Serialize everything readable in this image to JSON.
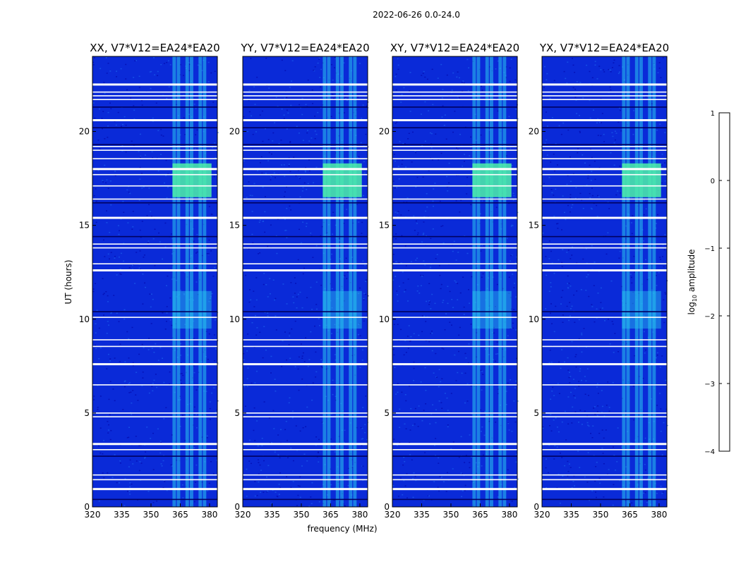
{
  "chart_data": {
    "type": "heatmap",
    "suptitle": "2022-06-26 0.0-24.0",
    "xlabel": "frequency (MHz)",
    "ylabel": "UT (hours)",
    "colorbar_label": "log10 amplitude",
    "colorbar_label_text": "log",
    "colorbar_label_sub": "10",
    "colorbar_label_rest": " amplitude",
    "colorbar_range": [
      -4,
      1
    ],
    "colorbar_ticks": [
      "−4",
      "−3",
      "−2",
      "−1",
      "0",
      "1"
    ],
    "colorbar_tick_values": [
      -4,
      -3,
      -2,
      -1,
      0,
      1
    ],
    "xlim": [
      320,
      384
    ],
    "ylim": [
      0,
      24
    ],
    "xticks": [
      320,
      335,
      350,
      365,
      380
    ],
    "xtick_labels": [
      "320",
      "335",
      "350",
      "365",
      "380"
    ],
    "yticks": [
      0,
      5,
      10,
      15,
      20
    ],
    "ytick_labels": [
      "0",
      "5",
      "10",
      "15",
      "20"
    ],
    "rfi_band_mhz": [
      361,
      381
    ],
    "rfi_band_peak_hours": [
      16.5,
      18.3
    ],
    "flagged_row_hours": [
      0.95,
      1.45,
      1.7,
      3.05,
      3.35,
      4.8,
      5.0,
      6.5,
      7.6,
      8.55,
      8.9,
      10.1,
      12.6,
      12.95,
      13.8,
      14.0,
      15.4,
      16.4,
      17.1,
      17.7,
      18.0,
      18.55,
      19.0,
      19.2,
      20.6,
      21.7,
      21.9,
      22.1,
      22.5
    ],
    "dark_row_hours": [
      0.4,
      2.7,
      10.4,
      14.4,
      16.2,
      19.3,
      20.2,
      21.3
    ],
    "panels": [
      {
        "title": "XX, V7*V12=EA24*EA20"
      },
      {
        "title": "YY, V7*V12=EA24*EA20"
      },
      {
        "title": "XY, V7*V12=EA24*EA20"
      },
      {
        "title": "YX, V7*V12=EA24*EA20"
      }
    ],
    "colors": {
      "background": "#0a2ad8",
      "flagged": "#ffffff",
      "dark": "#000060",
      "rfi_strong": "#4df0a8",
      "rfi_weak": "#29c7f0"
    }
  }
}
